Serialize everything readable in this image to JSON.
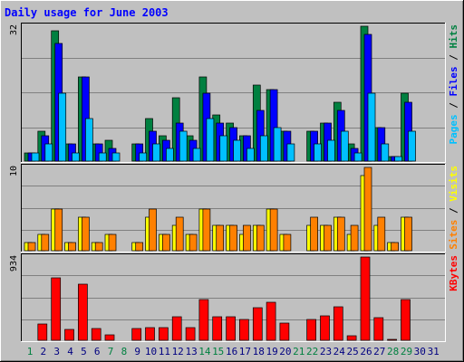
{
  "chart_data": [
    {
      "type": "bar",
      "title": "Daily usage for June 2003",
      "ylabel_parts": [
        {
          "text": "Pages",
          "color": "#00c0ff"
        },
        {
          "text": " / ",
          "color": "#000000"
        },
        {
          "text": "Files",
          "color": "#0000ff"
        },
        {
          "text": " / ",
          "color": "#000000"
        },
        {
          "text": "Hits",
          "color": "#008040"
        }
      ],
      "ymax_label": "32",
      "ylim": [
        0,
        32
      ],
      "categories": [
        "1",
        "2",
        "3",
        "4",
        "5",
        "6",
        "7",
        "8",
        "9",
        "10",
        "11",
        "12",
        "13",
        "14",
        "15",
        "16",
        "17",
        "18",
        "19",
        "20",
        "21",
        "22",
        "23",
        "24",
        "25",
        "26",
        "27",
        "28",
        "29",
        "30",
        "31"
      ],
      "weekend_days": [
        "1",
        "7",
        "8",
        "14",
        "15",
        "21",
        "22",
        "28",
        "29"
      ],
      "series": [
        {
          "name": "Hits",
          "color": "#008040",
          "values": [
            2,
            7,
            31,
            4,
            20,
            4,
            5,
            0,
            4,
            10,
            6,
            15,
            6,
            20,
            11,
            9,
            6,
            18,
            17,
            7,
            0,
            7,
            9,
            14,
            4,
            32,
            8,
            1,
            16,
            0,
            0
          ]
        },
        {
          "name": "Files",
          "color": "#0000ff",
          "values": [
            2,
            6,
            28,
            4,
            20,
            4,
            3,
            0,
            4,
            7,
            5,
            9,
            5,
            16,
            9,
            8,
            6,
            12,
            17,
            7,
            0,
            7,
            9,
            12,
            3,
            30,
            8,
            1,
            14,
            0,
            0
          ]
        },
        {
          "name": "Pages",
          "color": "#00c0ff",
          "values": [
            2,
            4,
            16,
            2,
            10,
            2,
            2,
            0,
            2,
            4,
            3,
            7,
            3,
            10,
            6,
            5,
            3,
            6,
            8,
            4,
            0,
            4,
            5,
            7,
            2,
            16,
            4,
            1,
            7,
            0,
            0
          ]
        }
      ]
    },
    {
      "type": "bar",
      "ylabel_parts": [
        {
          "text": "Sites",
          "color": "#ff8000"
        },
        {
          "text": " / ",
          "color": "#000000"
        },
        {
          "text": "Visits",
          "color": "#ffff00"
        }
      ],
      "ymax_label": "10",
      "ylim": [
        0,
        10
      ],
      "categories": [
        "1",
        "2",
        "3",
        "4",
        "5",
        "6",
        "7",
        "8",
        "9",
        "10",
        "11",
        "12",
        "13",
        "14",
        "15",
        "16",
        "17",
        "18",
        "19",
        "20",
        "21",
        "22",
        "23",
        "24",
        "25",
        "26",
        "27",
        "28",
        "29",
        "30",
        "31"
      ],
      "series": [
        {
          "name": "Visits",
          "color": "#ffff00",
          "values": [
            1,
            2,
            5,
            1,
            4,
            1,
            2,
            0,
            1,
            4,
            2,
            3,
            2,
            5,
            3,
            3,
            2,
            3,
            5,
            2,
            0,
            3,
            3,
            4,
            2,
            9,
            3,
            1,
            4,
            0,
            0
          ]
        },
        {
          "name": "Sites",
          "color": "#ff8000",
          "values": [
            1,
            2,
            5,
            1,
            4,
            1,
            2,
            0,
            1,
            5,
            2,
            4,
            2,
            5,
            3,
            3,
            3,
            3,
            5,
            2,
            0,
            4,
            3,
            4,
            3,
            10,
            4,
            1,
            4,
            0,
            0
          ]
        }
      ]
    },
    {
      "type": "bar",
      "ylabel_parts": [
        {
          "text": "KBytes",
          "color": "#ff0000"
        }
      ],
      "ymax_label": "934",
      "ylim": [
        0,
        934
      ],
      "categories": [
        "1",
        "2",
        "3",
        "4",
        "5",
        "6",
        "7",
        "8",
        "9",
        "10",
        "11",
        "12",
        "13",
        "14",
        "15",
        "16",
        "17",
        "18",
        "19",
        "20",
        "21",
        "22",
        "23",
        "24",
        "25",
        "26",
        "27",
        "28",
        "29",
        "30",
        "31"
      ],
      "series": [
        {
          "name": "KBytes",
          "color": "#ff0000",
          "values": [
            0,
            180,
            700,
            120,
            630,
            130,
            60,
            0,
            130,
            140,
            140,
            260,
            140,
            460,
            260,
            260,
            230,
            370,
            430,
            190,
            0,
            230,
            270,
            380,
            50,
            934,
            250,
            10,
            460,
            0,
            0
          ]
        }
      ]
    }
  ],
  "colors": {
    "background": "#c0c0c0",
    "title": "#0000ff",
    "weekday_label": "#000080",
    "weekend_label": "#008040"
  }
}
